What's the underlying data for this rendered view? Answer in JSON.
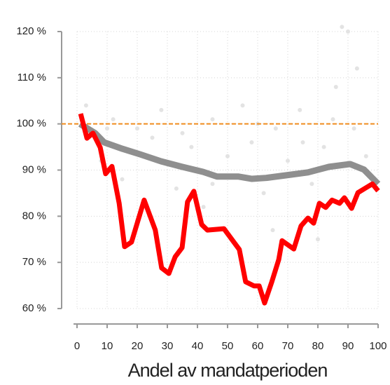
{
  "chart_data": {
    "type": "line",
    "xlabel": "Andel av mandatperioden",
    "xlim": [
      0,
      100
    ],
    "xticks": [
      0,
      10,
      20,
      30,
      40,
      50,
      60,
      70,
      80,
      90,
      100
    ],
    "ylim": [
      60,
      120
    ],
    "yticks": [
      {
        "value": 60,
        "label": "60 %"
      },
      {
        "value": 70,
        "label": "70 %"
      },
      {
        "value": 80,
        "label": "80 %"
      },
      {
        "value": 90,
        "label": "90 %"
      },
      {
        "value": 100,
        "label": "100 %"
      },
      {
        "value": 110,
        "label": "110 %"
      },
      {
        "value": 120,
        "label": "120 %"
      }
    ],
    "grid": true,
    "reference_line": {
      "value": 100,
      "color": "#f08c1e"
    },
    "background_points": {
      "color": "#e3e3e3",
      "x": [
        3,
        8,
        12,
        15,
        20,
        25,
        28,
        33,
        38,
        42,
        45,
        50,
        55,
        58,
        62,
        66,
        70,
        74,
        78,
        82,
        86,
        88,
        90,
        93,
        96,
        20,
        35,
        60,
        75,
        85,
        45,
        65,
        80,
        92,
        10
      ],
      "y": [
        104,
        92,
        101,
        88,
        99,
        97,
        103,
        86,
        95,
        82,
        101,
        93,
        104,
        96,
        85,
        99,
        92,
        103,
        87,
        95,
        108,
        121,
        120,
        112,
        93,
        79,
        98,
        100,
        96,
        101,
        87,
        77,
        75,
        99,
        99
      ]
    },
    "series": [
      {
        "color": "#8f8f8f",
        "x": [
          1,
          6,
          9,
          15.1,
          21,
          27.9,
          34.9,
          41.9,
          46.5,
          53.5,
          58.1,
          62.8,
          69.8,
          76.7,
          83.7,
          90.7,
          95.3,
          100
        ],
        "values": [
          100,
          98,
          96,
          94.6,
          93.4,
          91.9,
          90.7,
          89.6,
          88.6,
          88.6,
          88.1,
          88.3,
          88.9,
          89.5,
          90.7,
          91.3,
          90.1,
          87
        ]
      },
      {
        "color": "#ff0000",
        "x": [
          1.2,
          3.3,
          5.3,
          7.7,
          9.5,
          11.6,
          14,
          15.8,
          18.1,
          22.3,
          26,
          28.1,
          30.5,
          32.6,
          34.9,
          36.7,
          38.8,
          41.4,
          43.3,
          48.8,
          53.9,
          56,
          58.8,
          60.5,
          62.3,
          64.7,
          67,
          68.1,
          72,
          74.4,
          76.7,
          78.6,
          80.5,
          82.6,
          84.7,
          87.2,
          88.8,
          91.2,
          93.3,
          95.8,
          98.1,
          100
        ],
        "values": [
          102.2,
          96.9,
          98,
          94.9,
          89.2,
          90.8,
          82.8,
          73.4,
          74.4,
          83.5,
          77,
          68.8,
          67.6,
          71.2,
          73.2,
          83.1,
          85.4,
          78.2,
          77,
          77.3,
          72.8,
          65.8,
          64.9,
          64.9,
          61.2,
          65.8,
          70.6,
          74.7,
          72.9,
          77.9,
          79.6,
          78.5,
          82.8,
          81.9,
          83.5,
          82.8,
          84,
          81.7,
          85.1,
          86.1,
          87,
          85.5
        ]
      }
    ]
  }
}
